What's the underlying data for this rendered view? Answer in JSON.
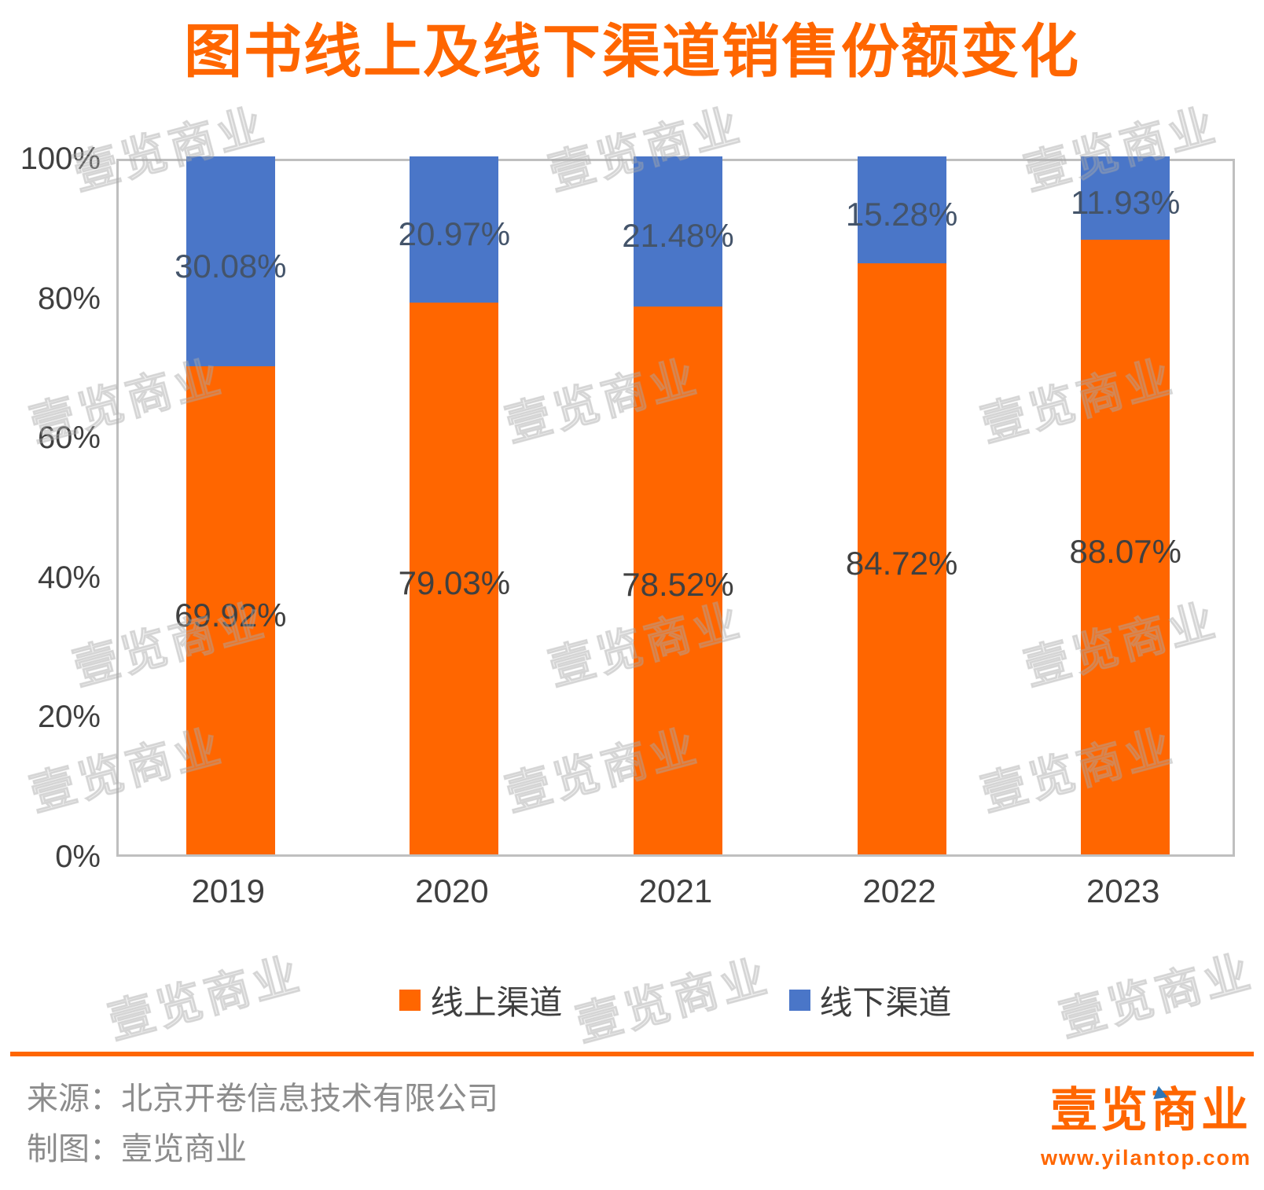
{
  "title": "图书线上及线下渠道销售份额变化",
  "chart_data": {
    "type": "bar",
    "stacked": true,
    "title": "图书线上及线下渠道销售份额变化",
    "categories": [
      "2019",
      "2020",
      "2021",
      "2022",
      "2023"
    ],
    "series": [
      {
        "name": "线上渠道",
        "values": [
          69.92,
          79.03,
          78.52,
          84.72,
          88.07
        ],
        "labels": [
          "69.92%",
          "79.03%",
          "78.52%",
          "84.72%",
          "88.07%"
        ],
        "color": "#FF6600"
      },
      {
        "name": "线下渠道",
        "values": [
          30.08,
          20.97,
          21.48,
          15.28,
          11.93
        ],
        "labels": [
          "30.08%",
          "20.97%",
          "21.48%",
          "15.28%",
          "11.93%"
        ],
        "color": "#4A76C8"
      }
    ],
    "xlabel": "",
    "ylabel": "",
    "ylim": [
      0,
      100
    ],
    "yticks": [
      "0%",
      "20%",
      "40%",
      "60%",
      "80%",
      "100%"
    ],
    "grid": false,
    "legend_position": "bottom"
  },
  "colors": {
    "online": "#FF6600",
    "offline": "#4A76C8",
    "title": "#FF6600",
    "divider": "#FF6600",
    "label_online": "#404040",
    "label_offline": "#44546A",
    "logo": "#FF6600",
    "logo_triangle": "#2E75B6"
  },
  "footer": {
    "source": "来源：北京开卷信息技术有限公司",
    "credit": "制图：壹览商业"
  },
  "logo": {
    "name": "壹览商业",
    "url": "www.yilantop.com"
  },
  "watermark": {
    "text": "壹览商业"
  }
}
